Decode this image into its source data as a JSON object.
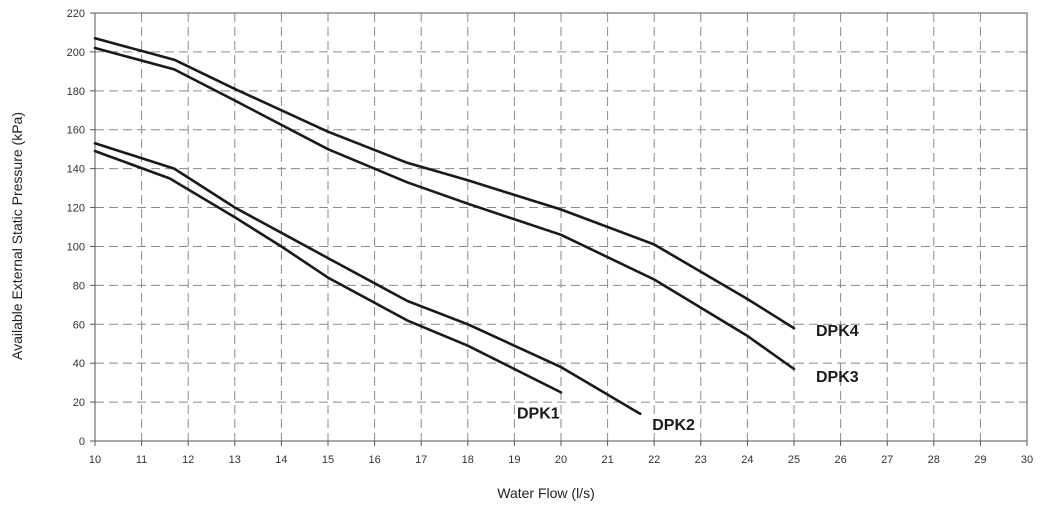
{
  "chart_data": {
    "type": "line",
    "title": "",
    "xlabel": "Water Flow (l/s)",
    "ylabel": "Available External Static Pressure (kPa)",
    "xlim": [
      10,
      30
    ],
    "ylim": [
      0,
      220
    ],
    "xticks": [
      10,
      11,
      12,
      13,
      14,
      15,
      16,
      17,
      18,
      19,
      20,
      21,
      22,
      23,
      24,
      25,
      26,
      27,
      28,
      29,
      30
    ],
    "yticks": [
      0,
      20,
      40,
      60,
      80,
      100,
      120,
      140,
      160,
      180,
      200,
      220
    ],
    "grid": true,
    "line_color": "#1a1a1a",
    "series": [
      {
        "name": "DPK1",
        "x": [
          10,
          11.6,
          13,
          14,
          15,
          16.7,
          18,
          20
        ],
        "y": [
          149,
          135,
          115,
          100,
          84,
          62,
          49,
          25
        ]
      },
      {
        "name": "DPK2",
        "x": [
          10,
          11.7,
          13,
          14,
          15,
          16.7,
          18,
          20,
          21.7
        ],
        "y": [
          153,
          140,
          120,
          107,
          94,
          72,
          60,
          38,
          14
        ]
      },
      {
        "name": "DPK3",
        "x": [
          10,
          11.7,
          13,
          15,
          16.7,
          18,
          20,
          22,
          24,
          25
        ],
        "y": [
          202,
          191,
          175,
          150,
          133,
          122,
          106,
          83,
          54,
          37
        ]
      },
      {
        "name": "DPK4",
        "x": [
          10,
          11.7,
          13,
          15,
          16.7,
          18,
          20,
          22,
          24,
          25
        ],
        "y": [
          207,
          196,
          181,
          159,
          143,
          134,
          119,
          101,
          73,
          58
        ]
      }
    ]
  }
}
